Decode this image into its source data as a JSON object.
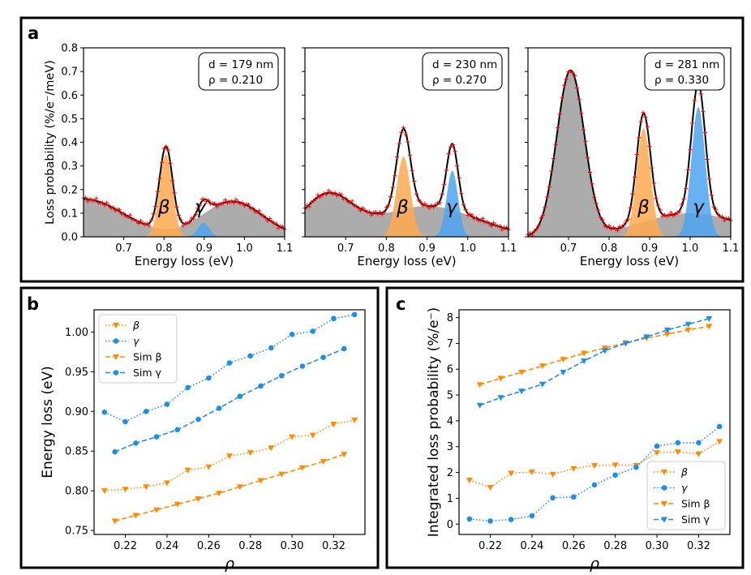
{
  "figure": {
    "panel_letters": [
      "a",
      "b",
      "c"
    ]
  },
  "colors": {
    "beta": "#ff8c00",
    "gamma": "#1f8ee8",
    "beta_fill": "#ffa94d",
    "gamma_fill": "#4da3f0",
    "background_fill": "#9e9e9e",
    "fit_line": "#000000",
    "measured_marker": "#ff0000"
  },
  "chart_data": [
    {
      "id": "a1",
      "type": "line",
      "xlabel": "Energy loss (eV)",
      "ylabel": "Loss probability (%/e⁻/meV)",
      "xlim": [
        0.6,
        1.1
      ],
      "ylim": [
        0,
        0.8
      ],
      "xticks": [
        0.7,
        0.8,
        0.9,
        1.0,
        1.1
      ],
      "xtick_labels": [
        "0.7",
        "0.8",
        "0.9",
        "1.0",
        "1.1"
      ],
      "yticks": [
        0.0,
        0.1,
        0.2,
        0.3,
        0.4,
        0.5,
        0.6,
        0.7,
        0.8
      ],
      "ytick_labels": [
        "0.0",
        "0.1",
        "0.2",
        "0.3",
        "0.4",
        "0.5",
        "0.6",
        "0.7",
        "0.8"
      ],
      "annotation": [
        "d = 179 nm",
        "ρ = 0.210"
      ],
      "peak_labels": [
        {
          "text": "β",
          "x": 0.8,
          "y": 0.1
        },
        {
          "text": "γ",
          "x": 0.89,
          "y": 0.1
        }
      ],
      "components": {
        "background": [
          {
            "center": 0.6,
            "amp": 0.16,
            "sigma": 0.1
          },
          {
            "center": 0.97,
            "amp": 0.15,
            "sigma": 0.075
          }
        ],
        "beta": {
          "center": 0.805,
          "amp": 0.35,
          "sigma": 0.016
        },
        "gamma": {
          "center": 0.898,
          "amp": 0.06,
          "sigma": 0.014
        }
      }
    },
    {
      "id": "a2",
      "type": "line",
      "xlabel": "Energy loss (eV)",
      "xlim": [
        0.6,
        1.1
      ],
      "ylim": [
        0,
        0.8
      ],
      "xticks": [
        0.7,
        0.8,
        0.9,
        1.0,
        1.1
      ],
      "xtick_labels": [
        "0.7",
        "0.8",
        "0.9",
        "1.0",
        "1.1"
      ],
      "annotation": [
        "d = 230 nm",
        "ρ = 0.270"
      ],
      "peak_labels": [
        {
          "text": "β",
          "x": 0.84,
          "y": 0.1
        },
        {
          "text": "γ",
          "x": 0.96,
          "y": 0.1
        }
      ],
      "components": {
        "background": [
          {
            "center": 0.655,
            "amp": 0.17,
            "sigma": 0.06
          },
          {
            "center": 0.9,
            "amp": 0.13,
            "sigma": 0.12
          }
        ],
        "beta": {
          "center": 0.842,
          "amp": 0.34,
          "sigma": 0.017
        },
        "gamma": {
          "center": 0.962,
          "amp": 0.28,
          "sigma": 0.014
        }
      }
    },
    {
      "id": "a3",
      "type": "line",
      "xlabel": "Energy loss (eV)",
      "xlim": [
        0.6,
        1.1
      ],
      "ylim": [
        0,
        0.8
      ],
      "xticks": [
        0.7,
        0.8,
        0.9,
        1.0,
        1.1
      ],
      "xtick_labels": [
        "0.7",
        "0.8",
        "0.9",
        "1.0",
        "1.1"
      ],
      "annotation": [
        "d = 281 nm",
        "ρ = 0.330"
      ],
      "peak_labels": [
        {
          "text": "β",
          "x": 0.885,
          "y": 0.1
        },
        {
          "text": "γ",
          "x": 1.02,
          "y": 0.1
        }
      ],
      "components": {
        "background": [
          {
            "center": 0.705,
            "amp": 0.7,
            "sigma": 0.034
          },
          {
            "center": 1.0,
            "amp": 0.1,
            "sigma": 0.12
          }
        ],
        "beta": {
          "center": 0.885,
          "amp": 0.46,
          "sigma": 0.017
        },
        "gamma": {
          "center": 1.02,
          "amp": 0.55,
          "sigma": 0.017
        }
      }
    },
    {
      "id": "b",
      "type": "line",
      "xlabel": "ρ",
      "ylabel": "Energy loss (eV)",
      "xlim": [
        0.205,
        0.335
      ],
      "ylim": [
        0.745,
        1.028
      ],
      "xticks": [
        0.22,
        0.24,
        0.26,
        0.28,
        0.3,
        0.32
      ],
      "xtick_labels": [
        "0.22",
        "0.24",
        "0.26",
        "0.28",
        "0.30",
        "0.32"
      ],
      "yticks": [
        0.75,
        0.8,
        0.85,
        0.9,
        0.95,
        1.0
      ],
      "ytick_labels": [
        "0.75",
        "0.80",
        "0.85",
        "0.90",
        "0.95",
        "1.00"
      ],
      "legend": {
        "position": "top-left",
        "entries": [
          "β",
          "γ",
          "Sim β",
          "Sim γ"
        ]
      },
      "series": [
        {
          "name": "β",
          "color": "beta",
          "marker": "triangle-down",
          "line": "dotted",
          "x": [
            0.21,
            0.22,
            0.23,
            0.24,
            0.25,
            0.26,
            0.27,
            0.28,
            0.29,
            0.3,
            0.31,
            0.32,
            0.33
          ],
          "y": [
            0.8,
            0.802,
            0.805,
            0.81,
            0.826,
            0.83,
            0.844,
            0.848,
            0.854,
            0.868,
            0.87,
            0.884,
            0.889
          ]
        },
        {
          "name": "γ",
          "color": "gamma",
          "marker": "circle",
          "line": "dotted",
          "x": [
            0.21,
            0.22,
            0.23,
            0.24,
            0.25,
            0.26,
            0.27,
            0.28,
            0.29,
            0.3,
            0.31,
            0.32,
            0.33
          ],
          "y": [
            0.899,
            0.887,
            0.9,
            0.909,
            0.93,
            0.942,
            0.961,
            0.97,
            0.98,
            0.997,
            1.001,
            1.017,
            1.022
          ]
        },
        {
          "name": "Sim β",
          "color": "beta",
          "marker": "triangle-down",
          "line": "dashed",
          "x": [
            0.215,
            0.225,
            0.235,
            0.245,
            0.255,
            0.265,
            0.275,
            0.285,
            0.295,
            0.305,
            0.315,
            0.325
          ],
          "y": [
            0.762,
            0.769,
            0.776,
            0.783,
            0.79,
            0.797,
            0.805,
            0.813,
            0.821,
            0.829,
            0.837,
            0.846
          ]
        },
        {
          "name": "Sim γ",
          "color": "gamma",
          "marker": "circle",
          "line": "dashed",
          "x": [
            0.215,
            0.225,
            0.235,
            0.245,
            0.255,
            0.265,
            0.275,
            0.285,
            0.295,
            0.305,
            0.315,
            0.325
          ],
          "y": [
            0.849,
            0.86,
            0.868,
            0.877,
            0.89,
            0.904,
            0.919,
            0.932,
            0.945,
            0.957,
            0.968,
            0.979
          ]
        }
      ]
    },
    {
      "id": "c",
      "type": "line",
      "xlabel": "ρ",
      "ylabel": "Integrated loss probability (%/e⁻)",
      "xlim": [
        0.205,
        0.335
      ],
      "ylim": [
        -0.4,
        8.3
      ],
      "xticks": [
        0.22,
        0.24,
        0.26,
        0.28,
        0.3,
        0.32
      ],
      "xtick_labels": [
        "0.22",
        "0.24",
        "0.26",
        "0.28",
        "0.30",
        "0.32"
      ],
      "yticks": [
        0,
        1,
        2,
        3,
        4,
        5,
        6,
        7,
        8
      ],
      "ytick_labels": [
        "0",
        "1",
        "2",
        "3",
        "4",
        "5",
        "6",
        "7",
        "8"
      ],
      "legend": {
        "position": "bottom-right",
        "entries": [
          "β",
          "γ",
          "Sim β",
          "Sim γ"
        ]
      },
      "series": [
        {
          "name": "β",
          "color": "beta",
          "marker": "triangle-down",
          "line": "dotted",
          "x": [
            0.21,
            0.22,
            0.23,
            0.24,
            0.25,
            0.26,
            0.27,
            0.28,
            0.29,
            0.3,
            0.31,
            0.32,
            0.33
          ],
          "y": [
            1.7,
            1.42,
            1.97,
            2.02,
            1.93,
            2.15,
            2.27,
            2.29,
            2.27,
            2.77,
            2.8,
            2.72,
            3.2
          ]
        },
        {
          "name": "γ",
          "color": "gamma",
          "marker": "circle",
          "line": "dotted",
          "x": [
            0.21,
            0.22,
            0.23,
            0.24,
            0.25,
            0.26,
            0.27,
            0.28,
            0.29,
            0.3,
            0.31,
            0.32,
            0.33
          ],
          "y": [
            0.2,
            0.12,
            0.18,
            0.32,
            1.02,
            1.05,
            1.52,
            1.9,
            2.2,
            3.02,
            3.15,
            3.15,
            3.78
          ]
        },
        {
          "name": "Sim β",
          "color": "beta",
          "marker": "triangle-down",
          "line": "dashed",
          "x": [
            0.215,
            0.225,
            0.235,
            0.245,
            0.255,
            0.265,
            0.275,
            0.285,
            0.295,
            0.305,
            0.315,
            0.325
          ],
          "y": [
            5.4,
            5.65,
            5.88,
            6.13,
            6.38,
            6.62,
            6.82,
            7.02,
            7.2,
            7.36,
            7.52,
            7.66
          ]
        },
        {
          "name": "Sim γ",
          "color": "gamma",
          "marker": "triangle-down",
          "line": "dashed",
          "x": [
            0.215,
            0.225,
            0.235,
            0.245,
            0.255,
            0.265,
            0.275,
            0.285,
            0.295,
            0.305,
            0.315,
            0.325
          ],
          "y": [
            4.6,
            4.9,
            5.15,
            5.42,
            5.88,
            6.32,
            6.72,
            7.0,
            7.25,
            7.52,
            7.74,
            7.96
          ]
        }
      ]
    }
  ]
}
